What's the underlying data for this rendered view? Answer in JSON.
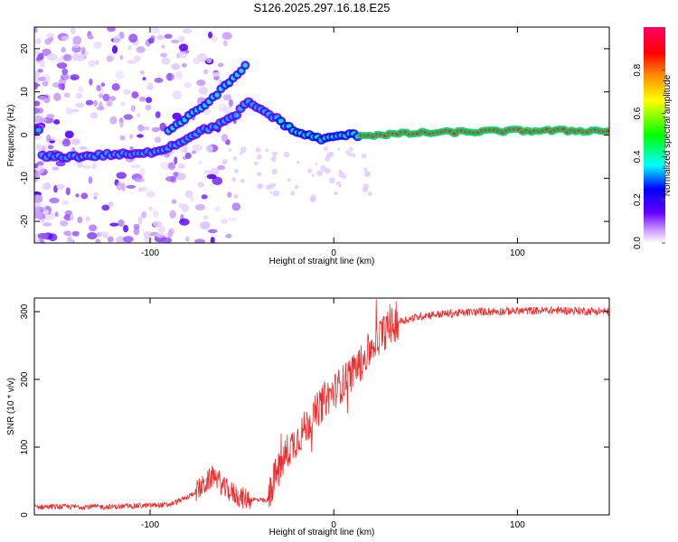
{
  "title": "S126.2025.297.16.18.E25",
  "chart_data": [
    {
      "type": "heatmap",
      "name": "spectrogram",
      "xlabel": "Height of straight line (km)",
      "ylabel": "Frequency (Hz)",
      "xlim": [
        -163,
        150
      ],
      "ylim": [
        -25,
        25
      ],
      "xticks": [
        -100,
        0,
        100
      ],
      "yticks": [
        -20,
        -10,
        0,
        10,
        20
      ],
      "xtick_labels": [
        "-100",
        "0",
        "100"
      ],
      "ytick_labels": [
        "-20",
        "-10",
        "0",
        "10",
        "20"
      ],
      "ridge": [
        [
          -160,
          -5
        ],
        [
          -140,
          -5
        ],
        [
          -120,
          -4.5
        ],
        [
          -105,
          -4.5
        ],
        [
          -95,
          -3.5
        ],
        [
          -85,
          -2
        ],
        [
          -75,
          0.5
        ],
        [
          -65,
          2
        ],
        [
          -55,
          4
        ],
        [
          -47,
          7.5
        ],
        [
          -40,
          6
        ],
        [
          -30,
          3.5
        ],
        [
          -22,
          1
        ],
        [
          -15,
          0
        ],
        [
          -5,
          -1
        ],
        [
          5,
          0
        ],
        [
          20,
          0
        ],
        [
          50,
          0.5
        ],
        [
          100,
          1
        ],
        [
          150,
          1
        ]
      ],
      "upper_branch": [
        [
          -90,
          1
        ],
        [
          -80,
          4
        ],
        [
          -70,
          7
        ],
        [
          -60,
          11
        ],
        [
          -50,
          15
        ],
        [
          -47,
          17
        ]
      ]
    },
    {
      "type": "colorbar",
      "name": "amplitude-colorbar",
      "label": "Normalized spectral amplitude",
      "range": [
        0.0,
        1.0
      ],
      "ticks": [
        0.0,
        0.2,
        0.4,
        0.6,
        0.8
      ],
      "tick_labels": [
        "0.0",
        "0.2",
        "0.4",
        "0.6",
        "0.8"
      ],
      "colors": [
        "#ffffff",
        "#cc99ff",
        "#6600ff",
        "#0000ff",
        "#00ffff",
        "#00ff00",
        "#ffff00",
        "#ff8800",
        "#ff0000",
        "#ff0066"
      ]
    },
    {
      "type": "line",
      "name": "snr",
      "xlabel": "Height of straight line (km)",
      "ylabel": "SNR (10 * v/v)",
      "xlim": [
        -163,
        150
      ],
      "ylim": [
        0,
        320
      ],
      "xticks": [
        -100,
        0,
        100
      ],
      "yticks": [
        0,
        100,
        200,
        300
      ],
      "xtick_labels": [
        "-100",
        "0",
        "100"
      ],
      "ytick_labels": [
        "0",
        "100",
        "200",
        "300"
      ],
      "color": "#e83030",
      "envelope": [
        [
          -163,
          12
        ],
        [
          -120,
          12
        ],
        [
          -90,
          15
        ],
        [
          -80,
          25
        ],
        [
          -70,
          45
        ],
        [
          -65,
          60
        ],
        [
          -60,
          40
        ],
        [
          -50,
          25
        ],
        [
          -36,
          20
        ],
        [
          -33,
          50
        ],
        [
          -25,
          95
        ],
        [
          -15,
          130
        ],
        [
          -5,
          170
        ],
        [
          5,
          195
        ],
        [
          15,
          225
        ],
        [
          25,
          265
        ],
        [
          35,
          285
        ],
        [
          50,
          295
        ],
        [
          80,
          300
        ],
        [
          120,
          302
        ],
        [
          150,
          300
        ]
      ]
    }
  ]
}
